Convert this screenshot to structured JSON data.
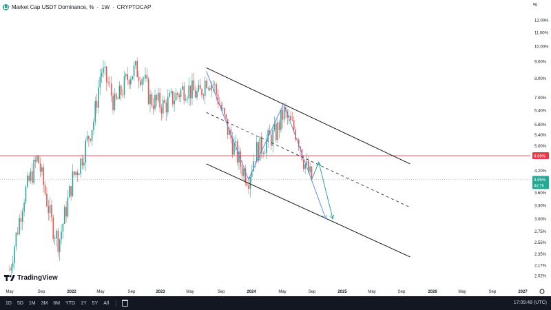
{
  "header": {
    "title": "Market Cap USDT Dominance, %",
    "interval": "1W",
    "source": "CRYPTOCAP",
    "separator": " · "
  },
  "price_axis": {
    "unit_label": "%",
    "labels": [
      "12.00%",
      "11.00%",
      "10.00%",
      "9.00%",
      "8.00%",
      "7.00%",
      "6.40%",
      "5.80%",
      "5.40%",
      "5.00%",
      "4.20%",
      "3.60%",
      "3.30%",
      "3.00%",
      "2.75%",
      "2.55%",
      "2.35%",
      "2.17%",
      "2.02%"
    ],
    "highlight_red": "4.66%",
    "highlight_green": "3.95%",
    "countdown": "4d 7h"
  },
  "time_axis": [
    "May",
    "Sep",
    "2022",
    "May",
    "Sep",
    "2023",
    "May",
    "Sep",
    "2024",
    "May",
    "Sep",
    "2025",
    "May",
    "Sep",
    "2026",
    "May",
    "Sep",
    "2027"
  ],
  "brand": "TradingView",
  "toolbar": {
    "ranges": [
      "1D",
      "5D",
      "1M",
      "3M",
      "6M",
      "YTD",
      "1Y",
      "5Y",
      "All"
    ],
    "clock": "17:09:48 (UTC)"
  },
  "colors": {
    "up": "#26a69a",
    "down": "#ef5350",
    "channel": "#131722",
    "zigzag": "#5b8ee6",
    "projection": "#26a69a",
    "resistance": "#f7525f",
    "axis_text": "#131722",
    "green_label": "#22ab94",
    "red_label": "#f23645"
  },
  "chart_data": {
    "type": "candlestick",
    "y_scale": "log",
    "ylim": [
      2.0,
      12.3
    ],
    "series": [
      {
        "date": "2021-05",
        "value": 2.1
      },
      {
        "date": "2021-07",
        "value": 3.5
      },
      {
        "date": "2021-09",
        "value": 4.6
      },
      {
        "date": "2021-11",
        "value": 2.9
      },
      {
        "date": "2021-12",
        "value": 2.55
      },
      {
        "date": "2022-02",
        "value": 4.0
      },
      {
        "date": "2022-03",
        "value": 4.4
      },
      {
        "date": "2022-05",
        "value": 6.0
      },
      {
        "date": "2022-06",
        "value": 8.5
      },
      {
        "date": "2022-07",
        "value": 7.7
      },
      {
        "date": "2022-08",
        "value": 6.6
      },
      {
        "date": "2022-10",
        "value": 8.2
      },
      {
        "date": "2022-11",
        "value": 8.5
      },
      {
        "date": "2022-12",
        "value": 8.1
      },
      {
        "date": "2023-01",
        "value": 6.9
      },
      {
        "date": "2023-03",
        "value": 6.6
      },
      {
        "date": "2023-06",
        "value": 7.5
      },
      {
        "date": "2023-08",
        "value": 7.1
      },
      {
        "date": "2023-09",
        "value": 8.0
      },
      {
        "date": "2023-10",
        "value": 7.7
      },
      {
        "date": "2023-12",
        "value": 5.6
      },
      {
        "date": "2024-02",
        "value": 4.3
      },
      {
        "date": "2024-03",
        "value": 4.0
      },
      {
        "date": "2024-04",
        "value": 4.8
      },
      {
        "date": "2024-05",
        "value": 5.0
      },
      {
        "date": "2024-07",
        "value": 5.5
      },
      {
        "date": "2024-08",
        "value": 6.3
      },
      {
        "date": "2024-09",
        "value": 5.8
      },
      {
        "date": "2024-10",
        "value": 5.4
      },
      {
        "date": "2024-11",
        "value": 4.4
      },
      {
        "date": "2024-12",
        "value": 3.95
      }
    ],
    "horizontal_line": 4.66,
    "last_value": 3.95,
    "channel": {
      "upper": [
        {
          "date": "2023-09",
          "value": 8.6
        },
        {
          "date": "2026-02",
          "value": 4.4
        }
      ],
      "lower": [
        {
          "date": "2023-09",
          "value": 4.4
        },
        {
          "date": "2026-02",
          "value": 2.3
        }
      ],
      "middle": [
        {
          "date": "2023-09",
          "value": 6.3
        },
        {
          "date": "2026-02",
          "value": 3.25
        }
      ]
    },
    "zigzag": [
      {
        "date": "2023-09",
        "value": 8.4
      },
      {
        "date": "2024-03",
        "value": 3.95
      },
      {
        "date": "2024-08",
        "value": 6.7
      },
      {
        "date": "2025-02",
        "value": 3.0
      }
    ],
    "projection": [
      {
        "date": "2024-12",
        "value": 3.95
      },
      {
        "date": "2025-01",
        "value": 4.45
      },
      {
        "date": "2025-03",
        "value": 3.0
      }
    ]
  }
}
